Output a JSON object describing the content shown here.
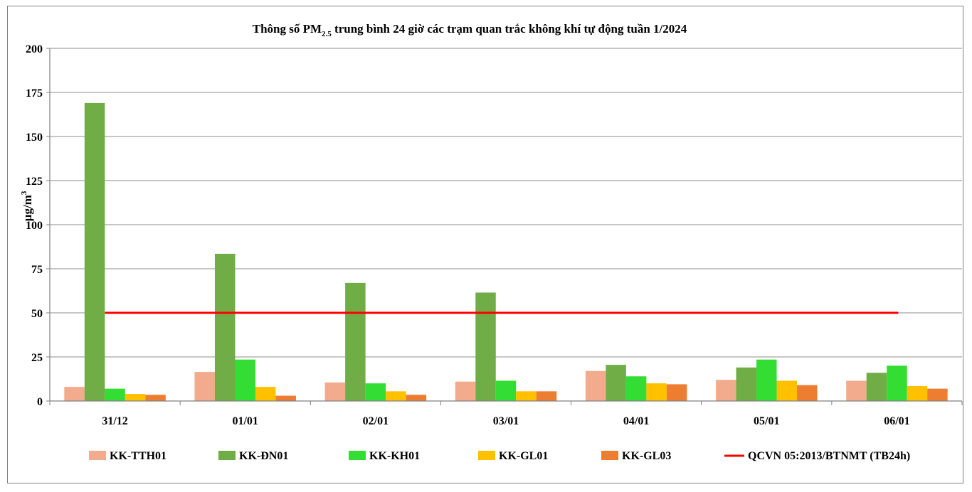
{
  "chart_data": {
    "type": "bar",
    "title_main": "Thông số PM",
    "title_sub": "2.5",
    "title_rest": " trung bình 24 giờ các trạm quan trắc không khí tự động tuần 1/2024",
    "ylabel_main": "µg/m",
    "ylabel_sup": "3",
    "xlabel": "",
    "ylim": [
      0,
      200
    ],
    "yticks": [
      0,
      25,
      50,
      75,
      100,
      125,
      150,
      175,
      200
    ],
    "categories": [
      "31/12",
      "01/01",
      "02/01",
      "03/01",
      "04/01",
      "05/01",
      "06/01"
    ],
    "series": [
      {
        "name": "KK-TTH01",
        "color": "#F2AB8C",
        "values": [
          8,
          16.5,
          10.5,
          11,
          17,
          12,
          11.5
        ]
      },
      {
        "name": "KK-ĐN01",
        "color": "#70AD47",
        "values": [
          169,
          83.5,
          67,
          61.5,
          20.5,
          19,
          16
        ]
      },
      {
        "name": "KK-KH01",
        "color": "#33DD33",
        "values": [
          7,
          23.5,
          10,
          11.5,
          14,
          23.5,
          20
        ]
      },
      {
        "name": "KK-GL01",
        "color": "#FFC000",
        "values": [
          4,
          8,
          5.5,
          5.5,
          10,
          11.5,
          8.5
        ]
      },
      {
        "name": "KK-GL03",
        "color": "#ED7D31",
        "values": [
          3.5,
          3,
          3.5,
          5.5,
          9.5,
          9,
          7
        ]
      }
    ],
    "reference_line": {
      "name": "QCVN 05:2013/BTNMT (TB24h)",
      "value": 50,
      "color": "#FF0000"
    },
    "grid": "horizontal",
    "legend_position": "bottom"
  }
}
